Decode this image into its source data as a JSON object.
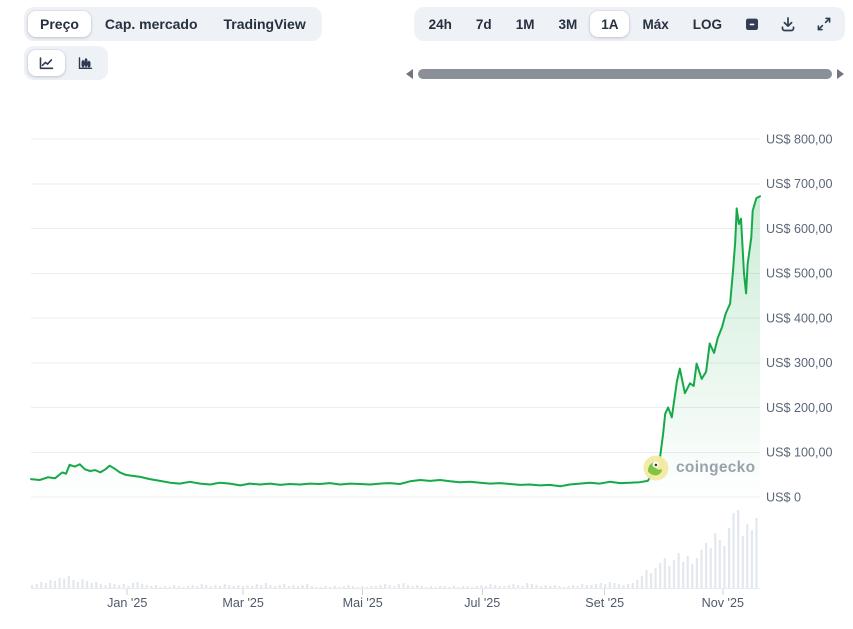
{
  "metric_tabs": {
    "items": [
      {
        "label": "Preço",
        "selected": true
      },
      {
        "label": "Cap. mercado",
        "selected": false
      },
      {
        "label": "TradingView",
        "selected": false
      }
    ]
  },
  "range_toolbar": {
    "items": [
      {
        "label": "24h",
        "selected": false
      },
      {
        "label": "7d",
        "selected": false
      },
      {
        "label": "1M",
        "selected": false
      },
      {
        "label": "3M",
        "selected": false
      },
      {
        "label": "1A",
        "selected": true
      },
      {
        "label": "Máx",
        "selected": false
      },
      {
        "label": "LOG",
        "selected": false
      }
    ],
    "icon_buttons": [
      {
        "name": "calendar-icon"
      },
      {
        "name": "download-icon"
      },
      {
        "name": "expand-icon"
      }
    ]
  },
  "chart_type_toolbar": {
    "items": [
      {
        "name": "line-chart-icon",
        "selected": true
      },
      {
        "name": "bar-volume-icon",
        "selected": false
      }
    ]
  },
  "scrollbar": {
    "left_arrow": "scroll-left-arrow",
    "right_arrow": "scroll-right-arrow"
  },
  "watermark": {
    "brand": "coingecko"
  },
  "colors": {
    "line": "#16a94a",
    "fill_top": "rgba(22,169,74,0.22)",
    "fill_bottom": "rgba(22,169,74,0)",
    "control_bg": "#eef1f6",
    "grid": "#ebedf0",
    "volume_bar": "#e3e8ee",
    "y_label": "#5b6777",
    "x_label": "#4e596a",
    "axis": "#e8ebef",
    "tick": "#ccd2da"
  },
  "chart_data": {
    "type": "line",
    "title": "",
    "currency": "US$",
    "ylim": [
      0,
      800
    ],
    "grid": true,
    "legend": false,
    "y_ticks": [
      {
        "value": 800,
        "label": "US$ 800,00"
      },
      {
        "value": 700,
        "label": "US$ 700,00"
      },
      {
        "value": 600,
        "label": "US$ 600,00"
      },
      {
        "value": 500,
        "label": "US$ 500,00"
      },
      {
        "value": 400,
        "label": "US$ 400,00"
      },
      {
        "value": 300,
        "label": "US$ 300,00"
      },
      {
        "value": 200,
        "label": "US$ 200,00"
      },
      {
        "value": 100,
        "label": "US$ 100,00"
      },
      {
        "value": 0,
        "label": "US$ 0"
      }
    ],
    "x_ticks": [
      {
        "label": "Jan '25",
        "f": 0.132
      },
      {
        "label": "Mar '25",
        "f": 0.291
      },
      {
        "label": "Mai '25",
        "f": 0.455
      },
      {
        "label": "Jul '25",
        "f": 0.619
      },
      {
        "label": "Set '25",
        "f": 0.787
      },
      {
        "label": "Nov '25",
        "f": 0.949
      }
    ],
    "series": [
      {
        "name": "Preço (US$)",
        "points": [
          [
            0.0,
            40
          ],
          [
            0.012,
            38
          ],
          [
            0.023,
            44
          ],
          [
            0.033,
            42
          ],
          [
            0.043,
            55
          ],
          [
            0.048,
            52
          ],
          [
            0.053,
            72
          ],
          [
            0.06,
            68
          ],
          [
            0.067,
            73
          ],
          [
            0.074,
            62
          ],
          [
            0.081,
            58
          ],
          [
            0.088,
            60
          ],
          [
            0.095,
            55
          ],
          [
            0.102,
            62
          ],
          [
            0.108,
            70
          ],
          [
            0.115,
            63
          ],
          [
            0.122,
            55
          ],
          [
            0.129,
            50
          ],
          [
            0.136,
            48
          ],
          [
            0.15,
            45
          ],
          [
            0.163,
            40
          ],
          [
            0.177,
            36
          ],
          [
            0.191,
            32
          ],
          [
            0.204,
            30
          ],
          [
            0.218,
            34
          ],
          [
            0.232,
            30
          ],
          [
            0.246,
            28
          ],
          [
            0.259,
            32
          ],
          [
            0.273,
            30
          ],
          [
            0.287,
            26
          ],
          [
            0.3,
            30
          ],
          [
            0.314,
            28
          ],
          [
            0.328,
            30
          ],
          [
            0.342,
            27
          ],
          [
            0.355,
            29
          ],
          [
            0.369,
            28
          ],
          [
            0.383,
            30
          ],
          [
            0.396,
            29
          ],
          [
            0.41,
            31
          ],
          [
            0.424,
            28
          ],
          [
            0.438,
            30
          ],
          [
            0.451,
            29
          ],
          [
            0.465,
            28
          ],
          [
            0.479,
            30
          ],
          [
            0.492,
            31
          ],
          [
            0.506,
            29
          ],
          [
            0.52,
            35
          ],
          [
            0.534,
            38
          ],
          [
            0.547,
            36
          ],
          [
            0.561,
            38
          ],
          [
            0.575,
            35
          ],
          [
            0.588,
            33
          ],
          [
            0.602,
            34
          ],
          [
            0.616,
            32
          ],
          [
            0.63,
            30
          ],
          [
            0.643,
            31
          ],
          [
            0.657,
            29
          ],
          [
            0.671,
            27
          ],
          [
            0.684,
            28
          ],
          [
            0.698,
            26
          ],
          [
            0.712,
            27
          ],
          [
            0.726,
            24
          ],
          [
            0.739,
            28
          ],
          [
            0.753,
            30
          ],
          [
            0.767,
            32
          ],
          [
            0.78,
            30
          ],
          [
            0.794,
            34
          ],
          [
            0.808,
            31
          ],
          [
            0.822,
            32
          ],
          [
            0.835,
            33
          ],
          [
            0.846,
            36
          ],
          [
            0.856,
            60
          ],
          [
            0.863,
            90
          ],
          [
            0.867,
            139
          ],
          [
            0.87,
            186
          ],
          [
            0.874,
            200
          ],
          [
            0.879,
            178
          ],
          [
            0.886,
            258
          ],
          [
            0.89,
            287
          ],
          [
            0.897,
            232
          ],
          [
            0.904,
            254
          ],
          [
            0.909,
            248
          ],
          [
            0.913,
            298
          ],
          [
            0.92,
            264
          ],
          [
            0.926,
            280
          ],
          [
            0.931,
            343
          ],
          [
            0.937,
            322
          ],
          [
            0.942,
            355
          ],
          [
            0.948,
            380
          ],
          [
            0.953,
            410
          ],
          [
            0.959,
            432
          ],
          [
            0.963,
            505
          ],
          [
            0.966,
            570
          ],
          [
            0.968,
            645
          ],
          [
            0.971,
            610
          ],
          [
            0.974,
            622
          ],
          [
            0.978,
            500
          ],
          [
            0.981,
            455
          ],
          [
            0.983,
            520
          ],
          [
            0.988,
            580
          ],
          [
            0.99,
            640
          ],
          [
            0.995,
            668
          ],
          [
            1.0,
            672
          ]
        ]
      }
    ],
    "volume_bars": [
      3,
      4,
      6,
      5,
      8,
      7,
      10,
      9,
      12,
      8,
      6,
      9,
      7,
      5,
      6,
      4,
      3,
      5,
      4,
      3,
      4,
      2,
      5,
      6,
      4,
      3,
      2,
      3,
      1,
      2,
      1,
      3,
      2,
      1,
      2,
      3,
      2,
      4,
      3,
      2,
      3,
      2,
      4,
      3,
      2,
      3,
      2,
      3,
      2,
      4,
      3,
      5,
      3,
      2,
      3,
      4,
      2,
      3,
      2,
      3,
      4,
      2,
      1,
      1,
      2,
      1,
      2,
      1,
      2,
      3,
      2,
      1,
      2,
      1,
      2,
      2,
      3,
      4,
      3,
      2,
      4,
      5,
      3,
      2,
      3,
      2,
      1,
      2,
      1,
      2,
      2,
      1,
      2,
      1,
      2,
      2,
      1,
      2,
      3,
      2,
      4,
      3,
      2,
      2,
      3,
      4,
      3,
      2,
      5,
      4,
      3,
      2,
      3,
      2,
      3,
      2,
      1,
      2,
      3,
      2,
      4,
      3,
      3,
      4,
      5,
      4,
      6,
      5,
      4,
      3,
      4,
      5,
      8,
      12,
      18,
      15,
      20,
      25,
      30,
      22,
      28,
      35,
      26,
      32,
      24,
      30,
      38,
      45,
      40,
      55,
      48,
      42,
      60,
      75,
      78,
      52,
      64,
      58,
      70
    ]
  }
}
